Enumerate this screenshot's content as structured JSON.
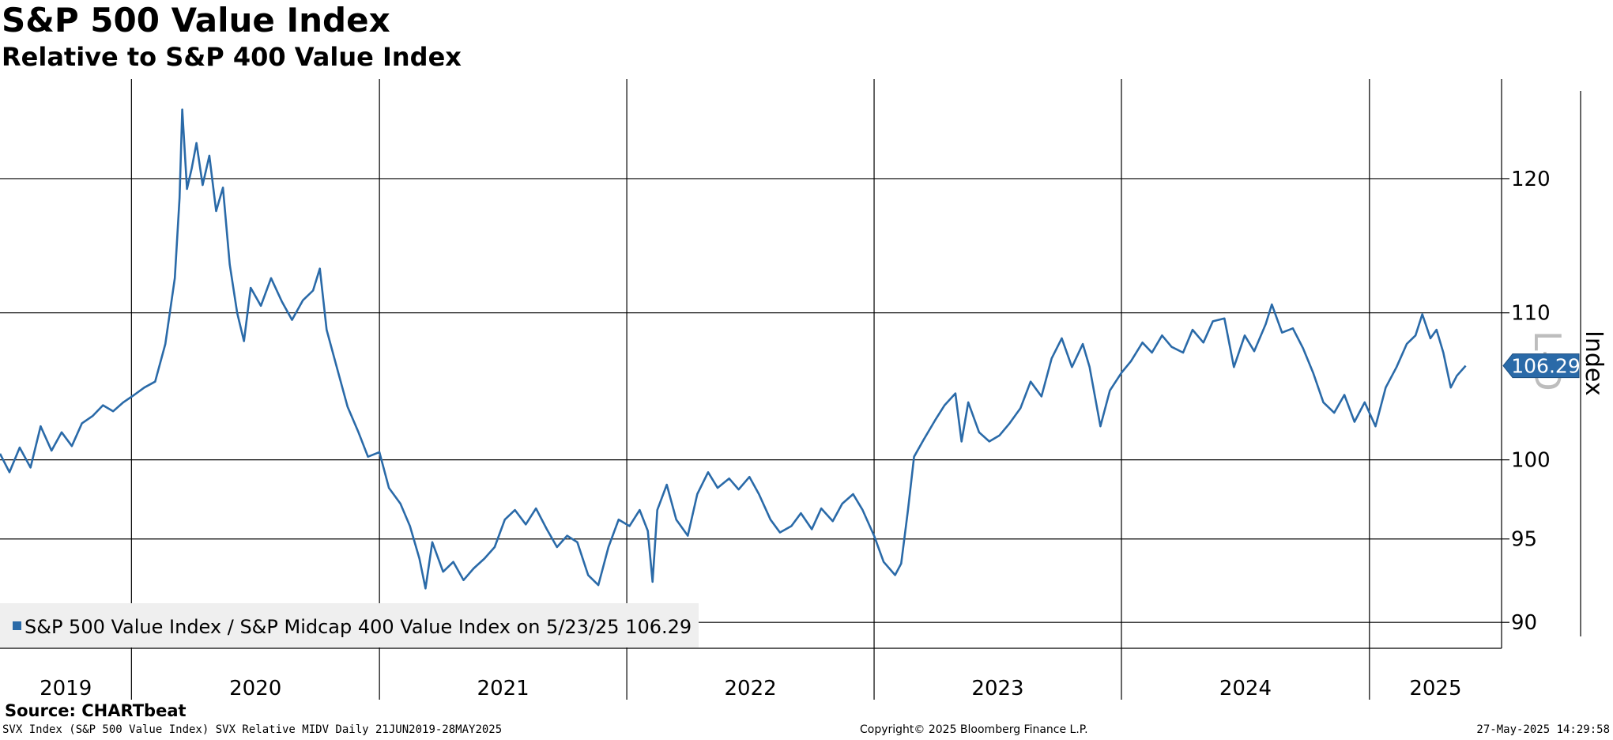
{
  "header": {
    "title": "S&P 500 Value Index",
    "subtitle": "Relative to S&P 400 Value Index"
  },
  "footer": {
    "source": "Source: CHARTbeat",
    "left": "SVX Index (S&P 500 Value Index) SVX Relative MIDV  Daily 21JUN2019-28MAY2025",
    "center": "Copyright© 2025 Bloomberg Finance L.P.",
    "right": "27-May-2025 14:29:58"
  },
  "colors": {
    "series": "#2a6aa8",
    "grid": "#000000",
    "legend_bg": "#efefef"
  },
  "chart_data": {
    "type": "line",
    "title": "S&P 500 Value Index",
    "subtitle": "Relative to S&P 400 Value Index",
    "ylabel": "Index",
    "axis_side": "right",
    "axis_mode_glyph": "L-D",
    "ylim": [
      88.5,
      128
    ],
    "y_ticks": [
      90,
      95,
      100,
      110,
      120
    ],
    "y_scale": "log",
    "xlim": [
      "2019-06-21",
      "2025-07-15"
    ],
    "year_labels": [
      "2019",
      "2020",
      "2021",
      "2022",
      "2023",
      "2024",
      "2025"
    ],
    "year_boundaries": [
      "2020-01-01",
      "2021-01-01",
      "2022-01-01",
      "2023-01-01",
      "2024-01-01",
      "2025-01-01"
    ],
    "grid": true,
    "legend": {
      "position": "bottom-left",
      "text": "S&P 500 Value Index / S&P Midcap 400 Value Index on 5/23/25 106.29"
    },
    "last_value": "106.29",
    "series": [
      {
        "name": "S&P 500 Value Index / S&P Midcap 400 Value Index",
        "points": [
          [
            "2019-06-21",
            100.4
          ],
          [
            "2019-07-05",
            99.2
          ],
          [
            "2019-07-20",
            100.8
          ],
          [
            "2019-08-05",
            99.5
          ],
          [
            "2019-08-20",
            102.2
          ],
          [
            "2019-09-05",
            100.6
          ],
          [
            "2019-09-20",
            101.8
          ],
          [
            "2019-10-05",
            100.9
          ],
          [
            "2019-10-20",
            102.4
          ],
          [
            "2019-11-05",
            102.9
          ],
          [
            "2019-11-20",
            103.6
          ],
          [
            "2019-12-05",
            103.2
          ],
          [
            "2019-12-20",
            103.8
          ],
          [
            "2020-01-05",
            104.3
          ],
          [
            "2020-01-20",
            104.8
          ],
          [
            "2020-02-05",
            105.2
          ],
          [
            "2020-02-20",
            107.8
          ],
          [
            "2020-03-05",
            112.5
          ],
          [
            "2020-03-12",
            118.5
          ],
          [
            "2020-03-16",
            125.5
          ],
          [
            "2020-03-23",
            119.2
          ],
          [
            "2020-03-30",
            120.8
          ],
          [
            "2020-04-06",
            122.8
          ],
          [
            "2020-04-15",
            119.5
          ],
          [
            "2020-04-25",
            121.8
          ],
          [
            "2020-05-05",
            117.5
          ],
          [
            "2020-05-15",
            119.3
          ],
          [
            "2020-05-25",
            113.5
          ],
          [
            "2020-06-05",
            110.0
          ],
          [
            "2020-06-15",
            108.0
          ],
          [
            "2020-06-25",
            111.8
          ],
          [
            "2020-07-10",
            110.5
          ],
          [
            "2020-07-25",
            112.5
          ],
          [
            "2020-08-10",
            110.8
          ],
          [
            "2020-08-25",
            109.5
          ],
          [
            "2020-09-10",
            110.9
          ],
          [
            "2020-09-25",
            111.6
          ],
          [
            "2020-10-05",
            113.2
          ],
          [
            "2020-10-15",
            108.8
          ],
          [
            "2020-10-30",
            106.2
          ],
          [
            "2020-11-15",
            103.5
          ],
          [
            "2020-12-01",
            101.8
          ],
          [
            "2020-12-15",
            100.2
          ],
          [
            "2021-01-01",
            100.5
          ],
          [
            "2021-01-15",
            98.2
          ],
          [
            "2021-02-01",
            97.2
          ],
          [
            "2021-02-15",
            95.8
          ],
          [
            "2021-03-01",
            93.8
          ],
          [
            "2021-03-10",
            92.0
          ],
          [
            "2021-03-20",
            94.8
          ],
          [
            "2021-04-05",
            93.0
          ],
          [
            "2021-04-20",
            93.6
          ],
          [
            "2021-05-05",
            92.5
          ],
          [
            "2021-05-20",
            93.2
          ],
          [
            "2021-06-05",
            93.8
          ],
          [
            "2021-06-20",
            94.5
          ],
          [
            "2021-07-05",
            96.2
          ],
          [
            "2021-07-20",
            96.8
          ],
          [
            "2021-08-05",
            95.9
          ],
          [
            "2021-08-20",
            96.9
          ],
          [
            "2021-09-05",
            95.6
          ],
          [
            "2021-09-20",
            94.5
          ],
          [
            "2021-10-05",
            95.2
          ],
          [
            "2021-10-20",
            94.8
          ],
          [
            "2021-11-05",
            92.8
          ],
          [
            "2021-11-20",
            92.2
          ],
          [
            "2021-12-05",
            94.5
          ],
          [
            "2021-12-20",
            96.2
          ],
          [
            "2022-01-05",
            95.8
          ],
          [
            "2022-01-20",
            96.8
          ],
          [
            "2022-02-01",
            95.5
          ],
          [
            "2022-02-08",
            92.4
          ],
          [
            "2022-02-15",
            96.8
          ],
          [
            "2022-03-01",
            98.4
          ],
          [
            "2022-03-15",
            96.2
          ],
          [
            "2022-04-01",
            95.2
          ],
          [
            "2022-04-15",
            97.8
          ],
          [
            "2022-05-01",
            99.2
          ],
          [
            "2022-05-15",
            98.2
          ],
          [
            "2022-06-01",
            98.8
          ],
          [
            "2022-06-15",
            98.1
          ],
          [
            "2022-07-01",
            98.9
          ],
          [
            "2022-07-15",
            97.8
          ],
          [
            "2022-08-01",
            96.2
          ],
          [
            "2022-08-15",
            95.4
          ],
          [
            "2022-09-01",
            95.8
          ],
          [
            "2022-09-15",
            96.6
          ],
          [
            "2022-10-01",
            95.6
          ],
          [
            "2022-10-15",
            96.9
          ],
          [
            "2022-11-01",
            96.1
          ],
          [
            "2022-11-15",
            97.2
          ],
          [
            "2022-12-01",
            97.8
          ],
          [
            "2022-12-15",
            96.8
          ],
          [
            "2023-01-01",
            95.2
          ],
          [
            "2023-01-15",
            93.6
          ],
          [
            "2023-02-01",
            92.8
          ],
          [
            "2023-02-10",
            93.5
          ],
          [
            "2023-02-20",
            96.8
          ],
          [
            "2023-03-01",
            100.2
          ],
          [
            "2023-03-15",
            101.3
          ],
          [
            "2023-04-01",
            102.6
          ],
          [
            "2023-04-15",
            103.6
          ],
          [
            "2023-05-01",
            104.4
          ],
          [
            "2023-05-10",
            101.2
          ],
          [
            "2023-05-20",
            103.8
          ],
          [
            "2023-06-05",
            101.8
          ],
          [
            "2023-06-20",
            101.2
          ],
          [
            "2023-07-05",
            101.6
          ],
          [
            "2023-07-20",
            102.4
          ],
          [
            "2023-08-05",
            103.4
          ],
          [
            "2023-08-20",
            105.2
          ],
          [
            "2023-09-05",
            104.2
          ],
          [
            "2023-09-20",
            106.8
          ],
          [
            "2023-10-05",
            108.2
          ],
          [
            "2023-10-20",
            106.2
          ],
          [
            "2023-11-05",
            107.8
          ],
          [
            "2023-11-15",
            106.2
          ],
          [
            "2023-12-01",
            102.2
          ],
          [
            "2023-12-15",
            104.6
          ],
          [
            "2024-01-01",
            105.8
          ],
          [
            "2024-01-15",
            106.6
          ],
          [
            "2024-02-01",
            107.9
          ],
          [
            "2024-02-15",
            107.2
          ],
          [
            "2024-03-01",
            108.4
          ],
          [
            "2024-03-15",
            107.6
          ],
          [
            "2024-04-01",
            107.2
          ],
          [
            "2024-04-15",
            108.8
          ],
          [
            "2024-05-01",
            107.9
          ],
          [
            "2024-05-15",
            109.4
          ],
          [
            "2024-06-01",
            109.6
          ],
          [
            "2024-06-15",
            106.2
          ],
          [
            "2024-07-01",
            108.4
          ],
          [
            "2024-07-15",
            107.3
          ],
          [
            "2024-08-01",
            109.2
          ],
          [
            "2024-08-10",
            110.6
          ],
          [
            "2024-08-25",
            108.6
          ],
          [
            "2024-09-10",
            108.9
          ],
          [
            "2024-09-25",
            107.5
          ],
          [
            "2024-10-10",
            105.8
          ],
          [
            "2024-10-25",
            103.8
          ],
          [
            "2024-11-10",
            103.1
          ],
          [
            "2024-11-25",
            104.3
          ],
          [
            "2024-12-10",
            102.5
          ],
          [
            "2024-12-25",
            103.8
          ],
          [
            "2025-01-10",
            102.2
          ],
          [
            "2025-01-25",
            104.8
          ],
          [
            "2025-02-10",
            106.2
          ],
          [
            "2025-02-25",
            107.8
          ],
          [
            "2025-03-10",
            108.4
          ],
          [
            "2025-03-20",
            109.9
          ],
          [
            "2025-04-01",
            108.2
          ],
          [
            "2025-04-10",
            108.8
          ],
          [
            "2025-04-20",
            107.2
          ],
          [
            "2025-05-01",
            104.8
          ],
          [
            "2025-05-10",
            105.6
          ],
          [
            "2025-05-23",
            106.29
          ]
        ]
      }
    ]
  }
}
